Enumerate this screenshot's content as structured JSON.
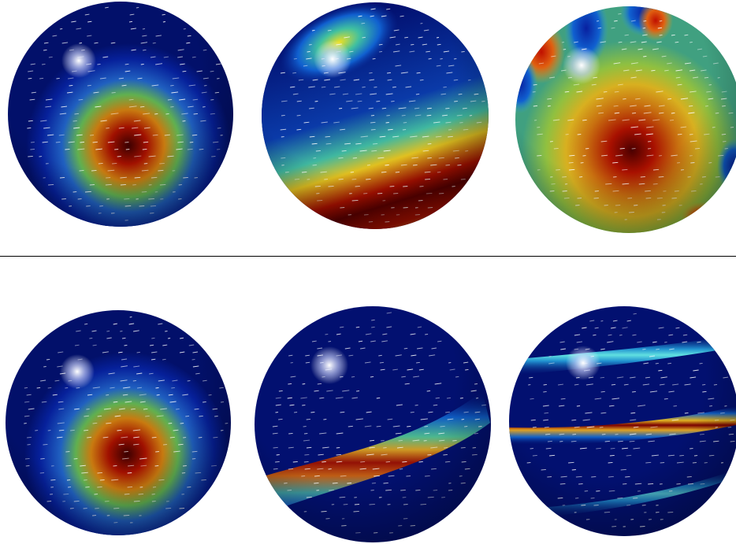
{
  "figure": {
    "rows": [
      {
        "name": "top-row",
        "panels": [
          {
            "name": "sphere-top-1",
            "pattern": "blob",
            "colormap": "jet"
          },
          {
            "name": "sphere-top-2",
            "pattern": "broad-band",
            "colormap": "jet"
          },
          {
            "name": "sphere-top-3",
            "pattern": "blob-with-harmonics",
            "colormap": "jet"
          }
        ]
      },
      {
        "name": "bottom-row",
        "panels": [
          {
            "name": "sphere-bottom-1",
            "pattern": "blob",
            "colormap": "jet"
          },
          {
            "name": "sphere-bottom-2",
            "pattern": "narrow-band",
            "colormap": "jet"
          },
          {
            "name": "sphere-bottom-3",
            "pattern": "multiple-narrow-bands",
            "colormap": "jet"
          }
        ]
      }
    ],
    "colors": {
      "background": "#ffffff",
      "divider": "#000000",
      "field_low": "#00106e",
      "field_high": "#7a0000",
      "arrows": "#ffffff",
      "highlight": "#ffffff"
    }
  }
}
